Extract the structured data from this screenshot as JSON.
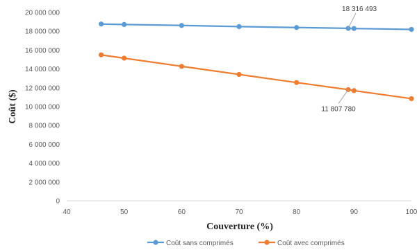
{
  "chart_data": {
    "type": "line",
    "xlabel": "Couverture (%)",
    "ylabel": "Coût ($)",
    "xlim": [
      40,
      100
    ],
    "ylim": [
      0,
      20000000
    ],
    "x_ticks": [
      "40",
      "50",
      "60",
      "70",
      "80",
      "90",
      "100"
    ],
    "y_ticks": [
      "0",
      "2 000 000",
      "4 000 000",
      "6 000 000",
      "8 000 000",
      "10 000 000",
      "12 000 000",
      "14 000 000",
      "16 000 000",
      "18 000 000",
      "20 000 000"
    ],
    "grid": false,
    "legend_position": "bottom",
    "x": [
      46,
      50,
      60,
      70,
      80,
      89,
      90,
      100
    ],
    "series": [
      {
        "name": "Coût sans comprimés",
        "color": "#5B9BD5",
        "values": [
          18770000,
          18720000,
          18620000,
          18500000,
          18400000,
          18316493,
          18300000,
          18200000
        ]
      },
      {
        "name": "Coût avec comprimés",
        "color": "#ED7D31",
        "values": [
          15500000,
          15150000,
          14280000,
          13420000,
          12560000,
          11807780,
          11700000,
          10850000
        ]
      }
    ],
    "annotations": [
      {
        "text": "18 316 493",
        "series": 0,
        "point": 5
      },
      {
        "text": "11 807 780",
        "series": 1,
        "point": 5
      }
    ]
  }
}
